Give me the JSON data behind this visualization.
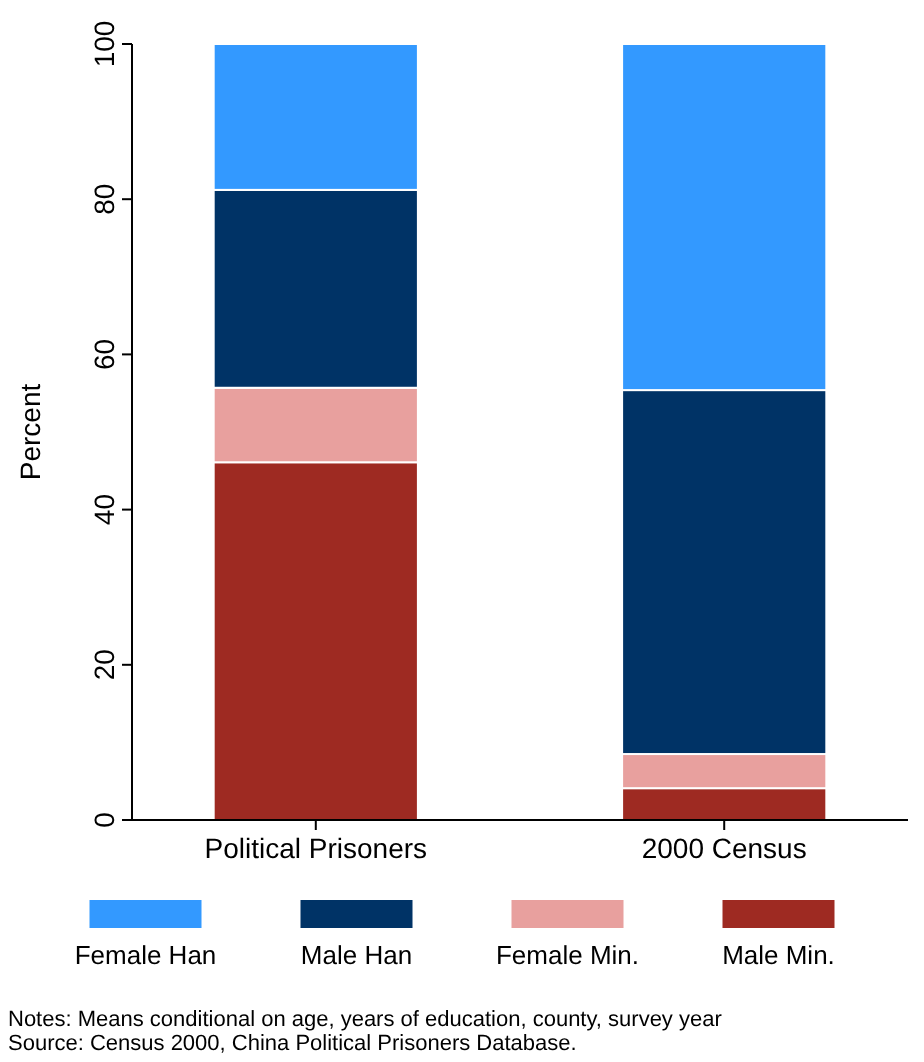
{
  "chart_data": {
    "type": "bar",
    "stacked": true,
    "categories": [
      "Political Prisoners",
      "2000 Census"
    ],
    "ylabel": "Percent",
    "ylim": [
      0,
      100
    ],
    "yticks": [
      0,
      20,
      40,
      60,
      80,
      100
    ],
    "grid": false,
    "legend": "bottom",
    "series": [
      {
        "name": "Male Min.",
        "color": "#9e2a22",
        "values": [
          46.1,
          4.1
        ]
      },
      {
        "name": "Female Min.",
        "color": "#e8a09e",
        "values": [
          9.6,
          4.4
        ]
      },
      {
        "name": "Male Han",
        "color": "#003366",
        "values": [
          25.5,
          46.9
        ]
      },
      {
        "name": "Female Han",
        "color": "#3399ff",
        "values": [
          18.8,
          44.6
        ]
      }
    ],
    "annotations": [
      "Notes: Means conditional on age, years of education, county, survey year",
      "Source: Census 2000, China Political Prisoners Database."
    ]
  }
}
